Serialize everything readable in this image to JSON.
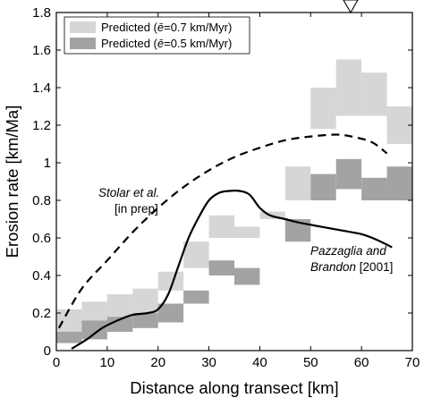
{
  "chart_data": {
    "type": "area",
    "xlabel": "Distance along transect [km]",
    "ylabel": "Erosion rate [km/Ma]",
    "xlim": [
      0,
      70
    ],
    "ylim": [
      0,
      1.8
    ],
    "xticks": [
      "0",
      "10",
      "20",
      "30",
      "40",
      "50",
      "60",
      "70"
    ],
    "yticks": [
      "0",
      "0.2",
      "0.4",
      "0.6",
      "0.8",
      "1",
      "1.2",
      "1.4",
      "1.6",
      "1.8"
    ],
    "grid": false,
    "legend_position": "top-left",
    "legend": [
      {
        "pre": "Predicted (",
        "sym": "ē",
        "post": "=0.7 km/Myr)",
        "color": "#d6d6d6"
      },
      {
        "pre": "Predicted (",
        "sym": "ē",
        "post": "=0.5 km/Myr)",
        "color": "#a3a3a3"
      }
    ],
    "bins": [
      0,
      5,
      10,
      15,
      20,
      25,
      30,
      35,
      40,
      45,
      50,
      55,
      60,
      65,
      70
    ],
    "series": [
      {
        "name": "Predicted (ē=0.7 km/Myr)",
        "color": "#d6d6d6",
        "low": [
          0.08,
          0.15,
          0.18,
          0.2,
          0.32,
          0.44,
          0.6,
          0.6,
          0.7,
          0.8,
          1.18,
          1.25,
          1.25,
          1.1
        ],
        "high": [
          0.22,
          0.26,
          0.3,
          0.33,
          0.42,
          0.58,
          0.72,
          0.66,
          0.74,
          0.98,
          1.4,
          1.55,
          1.48,
          1.3
        ]
      },
      {
        "name": "Predicted (ē=0.5 km/Myr)",
        "color": "#a3a3a3",
        "low": [
          0.04,
          0.06,
          0.1,
          0.12,
          0.15,
          0.25,
          0.4,
          0.35,
          0.5,
          0.58,
          0.8,
          0.86,
          0.8,
          0.8
        ],
        "high": [
          0.1,
          0.16,
          0.18,
          0.2,
          0.25,
          0.32,
          0.48,
          0.44,
          0.5,
          0.7,
          0.94,
          1.02,
          0.92,
          0.98
        ]
      }
    ],
    "lines": [
      {
        "label_lines": [
          "Stolar et al.",
          "[in prep]"
        ],
        "style": "dashed",
        "color": "#000000",
        "x": [
          0.5,
          5,
          10,
          15,
          20,
          25,
          30,
          35,
          40,
          45,
          50,
          55,
          58,
          62,
          65
        ],
        "y": [
          0.12,
          0.33,
          0.48,
          0.63,
          0.76,
          0.87,
          0.96,
          1.03,
          1.08,
          1.12,
          1.14,
          1.15,
          1.14,
          1.11,
          1.05
        ]
      },
      {
        "label_lines": [
          "Pazzaglia and",
          "Brandon [2001]"
        ],
        "style": "solid",
        "color": "#000000",
        "x": [
          3,
          6,
          9,
          12,
          15,
          18,
          20,
          22,
          24,
          26,
          28,
          30,
          32,
          34,
          36,
          38,
          40,
          42,
          45,
          48,
          52,
          56,
          60,
          63,
          66
        ],
        "y": [
          0.01,
          0.06,
          0.12,
          0.16,
          0.19,
          0.2,
          0.22,
          0.3,
          0.45,
          0.6,
          0.71,
          0.8,
          0.84,
          0.85,
          0.85,
          0.83,
          0.76,
          0.72,
          0.7,
          0.68,
          0.66,
          0.64,
          0.62,
          0.59,
          0.55
        ]
      }
    ]
  }
}
